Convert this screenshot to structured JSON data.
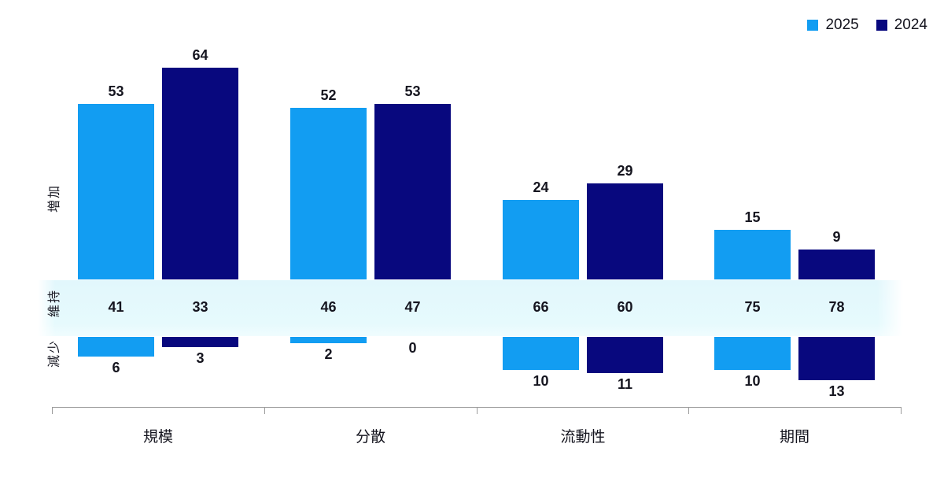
{
  "legend": {
    "items": [
      {
        "label": "2025",
        "color": "#129df2"
      },
      {
        "label": "2024",
        "color": "#08087e"
      }
    ]
  },
  "chart_data": {
    "type": "bar",
    "title": "",
    "categories": [
      "規模",
      "分散",
      "流動性",
      "期間"
    ],
    "row_labels": {
      "increase": "増加",
      "maintain": "維持",
      "decrease": "減少"
    },
    "series": [
      {
        "name": "2025",
        "color": "#129df2",
        "increase": [
          53,
          52,
          24,
          15
        ],
        "maintain": [
          41,
          46,
          66,
          75
        ],
        "decrease": [
          6,
          2,
          10,
          10
        ]
      },
      {
        "name": "2024",
        "color": "#08087e",
        "increase": [
          64,
          53,
          29,
          9
        ],
        "maintain": [
          33,
          47,
          60,
          78
        ],
        "decrease": [
          3,
          0,
          11,
          13
        ]
      }
    ],
    "value_unit": "%",
    "layout_hints": {
      "legend_position": "top-right",
      "grid": false,
      "maintain_band_color": "#e3f8fd",
      "increase_bars_grow_up_from_band": true,
      "decrease_bars_grow_down_from_band": true,
      "data_labels_shown": true
    }
  }
}
